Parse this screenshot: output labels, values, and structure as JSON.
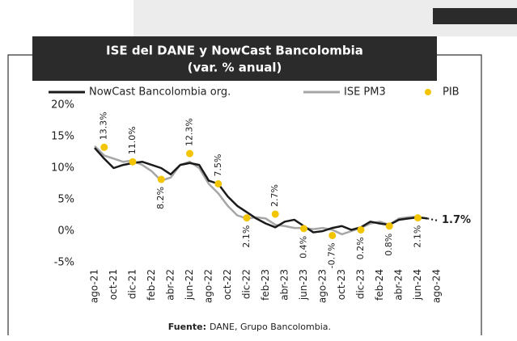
{
  "chart_data": {
    "type": "line",
    "title": "ISE del DANE y NowCast Bancolombia",
    "subtitle": "(var. % anual)",
    "source_label": "Fuente:",
    "source": "DANE, Grupo Bancolombia.",
    "categories": [
      "ago-21",
      null,
      "oct-21",
      null,
      "dic-21",
      null,
      "feb-22",
      null,
      "abr-22",
      null,
      "jun-22",
      null,
      "ago-22",
      null,
      "oct-22",
      null,
      "dic-22",
      null,
      "feb-23",
      null,
      "abr-23",
      null,
      "jun-23",
      null,
      "ago-23",
      null,
      "oct-23",
      null,
      "dic-23",
      null,
      "feb-24",
      null,
      "abr-24",
      null,
      "jun-24",
      null,
      "ago-24"
    ],
    "ylim": [
      -5,
      20
    ],
    "yticks": [
      {
        "value": -5,
        "label": "-5%"
      },
      {
        "value": 0,
        "label": "0%"
      },
      {
        "value": 5,
        "label": "5%"
      },
      {
        "value": 10,
        "label": "10%"
      },
      {
        "value": 15,
        "label": "15%"
      },
      {
        "value": 20,
        "label": "20%"
      }
    ],
    "series": [
      {
        "name": "NowCast Bancolombia org.",
        "color": "#1a1a1a",
        "style": "line",
        "values": [
          13.2,
          11.5,
          10.0,
          10.5,
          10.8,
          11.0,
          10.5,
          10.0,
          9.0,
          10.5,
          10.8,
          10.5,
          8.0,
          7.5,
          5.5,
          4.0,
          3.0,
          2.0,
          1.2,
          0.6,
          1.5,
          1.8,
          0.8,
          -0.2,
          0.0,
          0.5,
          0.8,
          0.2,
          0.6,
          1.5,
          1.2,
          1.0,
          1.8,
          2.0,
          2.2,
          2.0,
          1.7
        ],
        "value_labels": [
          null,
          null,
          null,
          null,
          null,
          null,
          null,
          null,
          null,
          null,
          null,
          null,
          null,
          null,
          null,
          null,
          null,
          null,
          null,
          null,
          null,
          null,
          null,
          null,
          null,
          null,
          null,
          null,
          null,
          null,
          null,
          null,
          null,
          null,
          null,
          null,
          "1.7%"
        ]
      },
      {
        "name": "ISE PM3",
        "color": "#a6a6a6",
        "style": "line",
        "values": [
          13.5,
          12.0,
          11.5,
          11.0,
          11.2,
          10.5,
          9.5,
          8.0,
          8.5,
          10.5,
          11.0,
          10.0,
          7.5,
          6.0,
          4.0,
          2.5,
          2.0,
          2.2,
          2.0,
          1.0,
          0.8,
          0.5,
          0.5,
          0.3,
          0.5,
          0.2,
          -0.5,
          0.0,
          0.5,
          1.2,
          1.5,
          1.0,
          2.0,
          2.2,
          2.3,
          null,
          null
        ]
      },
      {
        "name": "PIB",
        "color": "#f2c500",
        "style": "dots",
        "values": [
          null,
          13.3,
          null,
          null,
          11.0,
          null,
          null,
          8.2,
          null,
          null,
          12.3,
          null,
          null,
          7.5,
          null,
          null,
          2.1,
          null,
          null,
          2.7,
          null,
          null,
          0.4,
          null,
          null,
          -0.7,
          null,
          null,
          0.2,
          null,
          null,
          0.8,
          null,
          null,
          2.1,
          null,
          null
        ],
        "value_labels": [
          null,
          "13.3%",
          null,
          null,
          "11.0%",
          null,
          null,
          "8.2%",
          null,
          null,
          "12.3%",
          null,
          null,
          "7.5%",
          null,
          null,
          "2.1%",
          null,
          null,
          "2.7%",
          null,
          null,
          "0.4%",
          null,
          null,
          "-0.7%",
          null,
          null,
          "0.2%",
          null,
          null,
          "0.8%",
          null,
          null,
          "2.1%",
          null,
          null
        ]
      }
    ]
  }
}
